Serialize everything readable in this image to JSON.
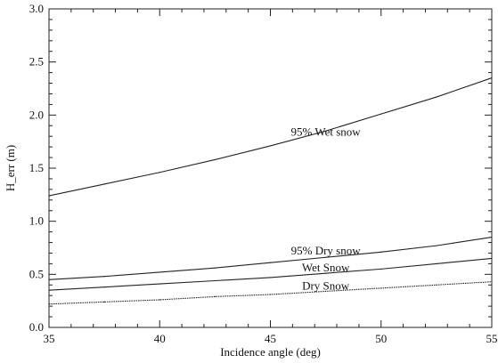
{
  "chart_data": {
    "type": "line",
    "title": "",
    "xlabel": "Incidence angle (deg)",
    "ylabel": "H_err (m)",
    "xlim": [
      35,
      55
    ],
    "ylim": [
      0.0,
      3.0
    ],
    "xticks": [
      35,
      40,
      45,
      50,
      55
    ],
    "xtick_labels": [
      "35",
      "40",
      "45",
      "50",
      "55"
    ],
    "yticks": [
      0.0,
      0.5,
      1.0,
      1.5,
      2.0,
      2.5,
      3.0
    ],
    "ytick_labels": [
      "0.0",
      "0.5",
      "1.0",
      "1.5",
      "2.0",
      "2.5",
      "3.0"
    ],
    "grid": false,
    "legend": "none",
    "x": [
      35,
      37.5,
      40,
      42.5,
      45,
      47.5,
      50,
      52.5,
      55
    ],
    "series": [
      {
        "name": "95% Wet snow",
        "values": [
          1.24,
          1.35,
          1.46,
          1.58,
          1.71,
          1.85,
          2.01,
          2.17,
          2.35
        ],
        "label_at": [
          47.5,
          1.84
        ],
        "color": "#222222"
      },
      {
        "name": "95% Dry snow",
        "values": [
          0.45,
          0.48,
          0.52,
          0.56,
          0.61,
          0.66,
          0.71,
          0.77,
          0.85
        ],
        "label_at": [
          47.5,
          0.72
        ],
        "color": "#222222"
      },
      {
        "name": "Wet Snow",
        "values": [
          0.35,
          0.38,
          0.41,
          0.44,
          0.47,
          0.51,
          0.55,
          0.6,
          0.65
        ],
        "label_at": [
          47.5,
          0.56
        ],
        "color": "#222222"
      },
      {
        "name": "Dry Snow",
        "values": [
          0.22,
          0.24,
          0.26,
          0.29,
          0.31,
          0.34,
          0.37,
          0.4,
          0.43
        ],
        "label_at": [
          47.5,
          0.39
        ],
        "color": "#222222",
        "dash": "dotted"
      }
    ]
  }
}
